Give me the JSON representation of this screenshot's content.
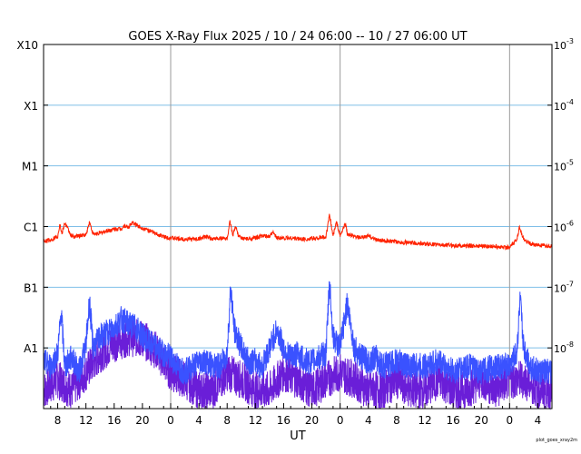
{
  "chart_data": {
    "type": "line",
    "title": "GOES X-Ray Flux   2025 / 10 / 24   06:00 -- 10 / 27   06:00   UT",
    "xlabel": "UT",
    "ylabel": "",
    "x_range_hours": [
      0,
      72
    ],
    "x_ticks": [
      {
        "h": 2,
        "label": "8"
      },
      {
        "h": 6,
        "label": "12"
      },
      {
        "h": 10,
        "label": "16"
      },
      {
        "h": 14,
        "label": "20"
      },
      {
        "h": 18,
        "label": "0"
      },
      {
        "h": 22,
        "label": "4"
      },
      {
        "h": 26,
        "label": "8"
      },
      {
        "h": 30,
        "label": "12"
      },
      {
        "h": 34,
        "label": "16"
      },
      {
        "h": 38,
        "label": "20"
      },
      {
        "h": 42,
        "label": "0"
      },
      {
        "h": 46,
        "label": "4"
      },
      {
        "h": 50,
        "label": "8"
      },
      {
        "h": 54,
        "label": "12"
      },
      {
        "h": 58,
        "label": "16"
      },
      {
        "h": 62,
        "label": "20"
      },
      {
        "h": 66,
        "label": "0"
      },
      {
        "h": 70,
        "label": "4"
      }
    ],
    "day_boundaries_hours": [
      18,
      42,
      66
    ],
    "y_scale": "log",
    "y_range": [
      1e-09,
      0.001
    ],
    "y_left_labels": [
      {
        "v": 1e-08,
        "label": "A1"
      },
      {
        "v": 1e-07,
        "label": "B1"
      },
      {
        "v": 1e-06,
        "label": "C1"
      },
      {
        "v": 1e-05,
        "label": "M1"
      },
      {
        "v": 0.0001,
        "label": "X1"
      },
      {
        "v": 0.001,
        "label": "X10"
      }
    ],
    "y_right_labels": [
      {
        "v": 1e-08,
        "base": "10",
        "exp": "-8"
      },
      {
        "v": 1e-07,
        "base": "10",
        "exp": "-7"
      },
      {
        "v": 1e-06,
        "base": "10",
        "exp": "-6"
      },
      {
        "v": 1e-05,
        "base": "10",
        "exp": "-5"
      },
      {
        "v": 0.0001,
        "base": "10",
        "exp": "-4"
      },
      {
        "v": 0.001,
        "base": "10",
        "exp": "-3"
      }
    ],
    "grid": "horizontal at each decade, vertical at day boundaries",
    "series": [
      {
        "color": "#ff2200",
        "values_hours": [
          0,
          1,
          2,
          2.3,
          2.6,
          3,
          4,
          5,
          6,
          6.5,
          7,
          8,
          9,
          10,
          11,
          11.5,
          12,
          12.5,
          13,
          13.5,
          14,
          15,
          16,
          17,
          18,
          19,
          20,
          21,
          22,
          23,
          24,
          25,
          26,
          26.4,
          26.8,
          27.2,
          27.6,
          28,
          29,
          30,
          31,
          32,
          32.5,
          33,
          34,
          35,
          36,
          37,
          38,
          39,
          40,
          40.5,
          41,
          41.5,
          42,
          42.8,
          43,
          44,
          45,
          46,
          47,
          48,
          50,
          52,
          54,
          56,
          58,
          60,
          62,
          64,
          65,
          66,
          67,
          67.4,
          68,
          69,
          70,
          71
        ],
        "values_flux": [
          5.8e-07,
          6e-07,
          7e-07,
          1.1e-06,
          7.5e-07,
          1.15e-06,
          6.8e-07,
          7e-07,
          7.3e-07,
          1.2e-06,
          7.5e-07,
          7.8e-07,
          8.5e-07,
          9e-07,
          9.3e-07,
          1.05e-06,
          9.6e-07,
          1.15e-06,
          1.1e-06,
          1e-06,
          9.5e-07,
          8.5e-07,
          7.5e-07,
          6.8e-07,
          6.5e-07,
          6.3e-07,
          6.2e-07,
          6.2e-07,
          6.3e-07,
          6.8e-07,
          6.2e-07,
          6.5e-07,
          6.3e-07,
          1.2e-06,
          7e-07,
          1e-06,
          7e-07,
          6.5e-07,
          6.2e-07,
          6.5e-07,
          7e-07,
          6.8e-07,
          8e-07,
          6.6e-07,
          6.4e-07,
          6.5e-07,
          6.3e-07,
          6.2e-07,
          6.3e-07,
          6.5e-07,
          6.8e-07,
          1.55e-06,
          7e-07,
          1.2e-06,
          7e-07,
          1.15e-06,
          7.5e-07,
          6.8e-07,
          6.5e-07,
          7e-07,
          6.2e-07,
          5.8e-07,
          5.6e-07,
          5.4e-07,
          5.2e-07,
          5e-07,
          4.9e-07,
          4.8e-07,
          4.8e-07,
          4.7e-07,
          4.6e-07,
          4.5e-07,
          6e-07,
          1e-06,
          6e-07,
          5.2e-07,
          4.9e-07,
          4.8e-07
        ]
      },
      {
        "color": "#3a52ff",
        "values_hours": [
          0,
          1,
          2,
          2.5,
          3,
          4,
          5,
          6,
          6.5,
          7,
          8,
          9,
          10,
          11,
          12,
          13,
          14,
          15,
          16,
          17,
          18,
          19,
          20,
          21,
          22,
          23,
          24,
          25,
          26,
          26.5,
          27,
          28,
          29,
          30,
          31,
          32,
          33,
          34,
          35,
          36,
          37,
          38,
          39,
          40,
          40.5,
          41,
          42,
          43,
          44,
          45,
          46,
          47,
          48,
          50,
          52,
          54,
          56,
          58,
          60,
          62,
          64,
          66,
          67,
          67.5,
          68,
          69,
          70,
          71
        ],
        "values_flux": [
          6e-09,
          5e-09,
          8e-09,
          4e-08,
          5e-09,
          7e-09,
          4e-09,
          1.1e-08,
          6e-08,
          1e-08,
          1.5e-08,
          1.8e-08,
          2.2e-08,
          3e-08,
          2.5e-08,
          2.2e-08,
          1.6e-08,
          1.2e-08,
          1e-08,
          8e-09,
          7e-09,
          5e-09,
          4e-09,
          5e-09,
          6e-09,
          6e-09,
          5e-09,
          5e-09,
          8e-09,
          1e-07,
          2e-08,
          1e-08,
          6e-09,
          6e-09,
          5e-09,
          1e-08,
          2e-08,
          1e-08,
          7e-09,
          8e-09,
          6e-09,
          6e-09,
          7e-09,
          8e-09,
          1.3e-07,
          1.5e-08,
          1e-08,
          5.5e-08,
          1e-08,
          7e-09,
          6e-09,
          7e-09,
          5e-09,
          6e-09,
          5e-09,
          5e-09,
          6e-09,
          4e-09,
          5e-09,
          4e-09,
          5e-09,
          5e-09,
          8e-09,
          6e-08,
          1e-08,
          5e-09,
          4e-09,
          4e-09
        ]
      },
      {
        "color": "#6a1ed8",
        "values_hours": [
          0,
          2,
          4,
          6,
          8,
          10,
          12,
          14,
          16,
          18,
          20,
          22,
          24,
          26,
          28,
          30,
          32,
          34,
          36,
          38,
          40,
          42,
          44,
          46,
          48,
          50,
          52,
          54,
          56,
          58,
          60,
          62,
          64,
          66,
          68,
          70,
          71
        ],
        "values_flux": [
          2e-09,
          3e-09,
          2e-09,
          4e-09,
          8e-09,
          1.2e-08,
          1.5e-08,
          1.4e-08,
          9e-09,
          4e-09,
          3e-09,
          2e-09,
          2e-09,
          4e-09,
          3e-09,
          2e-09,
          2e-09,
          4e-09,
          3e-09,
          2e-09,
          3e-09,
          4e-09,
          3e-09,
          2e-09,
          2e-09,
          3e-09,
          2e-09,
          2e-09,
          3e-09,
          2e-09,
          2e-09,
          3e-09,
          2e-09,
          3e-09,
          3e-09,
          2e-09,
          2e-09
        ]
      }
    ]
  },
  "footer_note": "plot_goes_xray2m"
}
